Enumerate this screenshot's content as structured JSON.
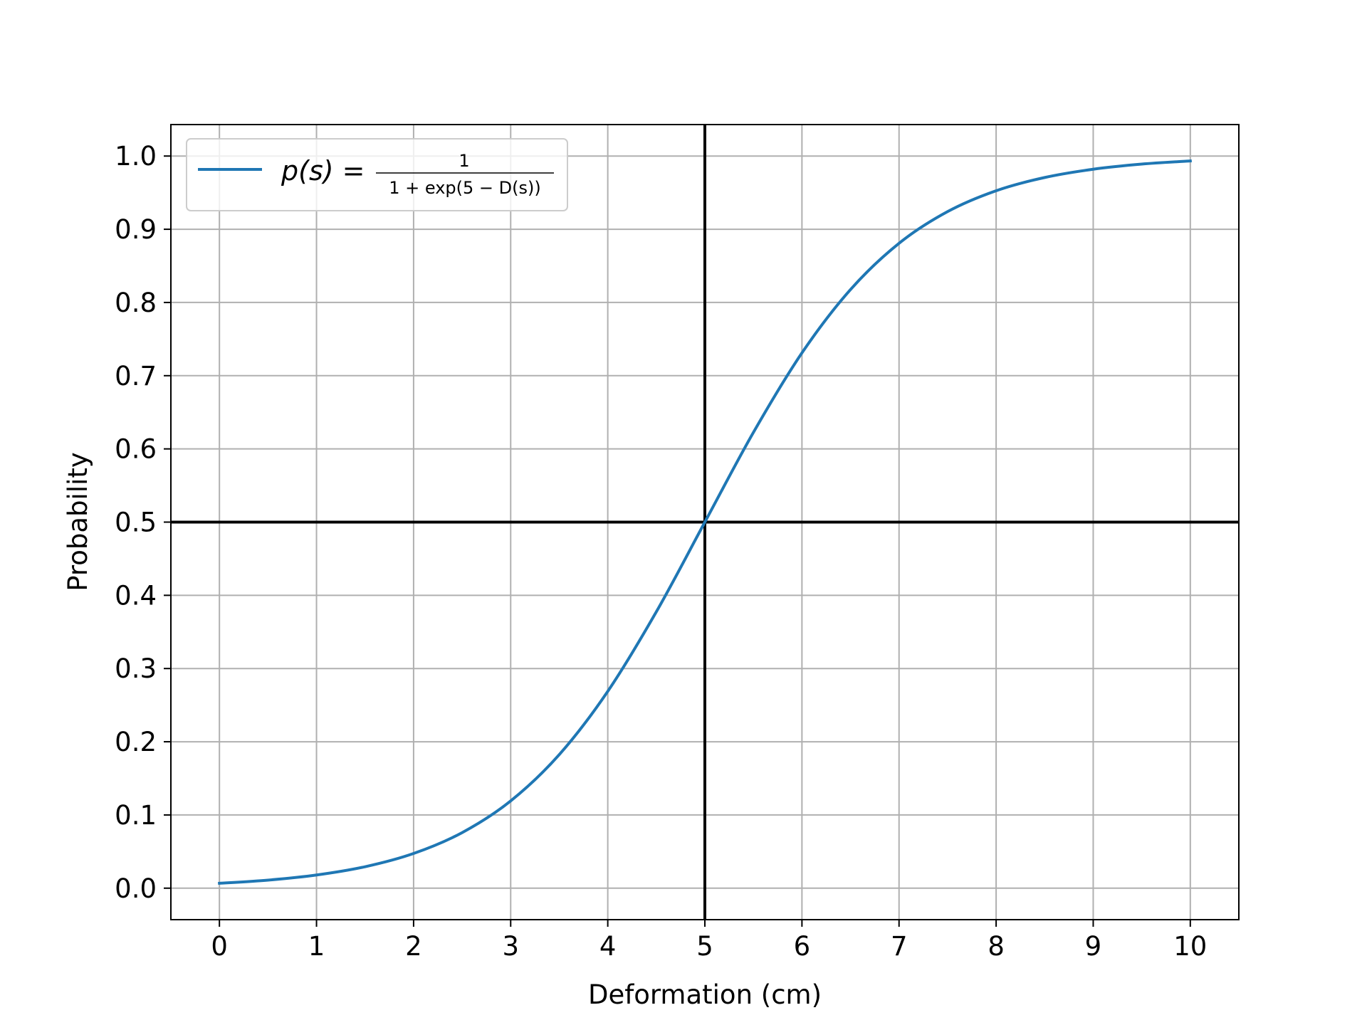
{
  "chart_data": {
    "type": "line",
    "title": "",
    "xlabel": "Deformation (cm)",
    "ylabel": "Probability",
    "xlim": [
      -0.5,
      10.5
    ],
    "ylim": [
      -0.043,
      1.043
    ],
    "xticks": [
      0,
      1,
      2,
      3,
      4,
      5,
      6,
      7,
      8,
      9,
      10
    ],
    "xtick_labels": [
      "0",
      "1",
      "2",
      "3",
      "4",
      "5",
      "6",
      "7",
      "8",
      "9",
      "10"
    ],
    "yticks": [
      0.0,
      0.1,
      0.2,
      0.3,
      0.4,
      0.5,
      0.6,
      0.7,
      0.8,
      0.9,
      1.0
    ],
    "ytick_labels": [
      "0.0",
      "0.1",
      "0.2",
      "0.3",
      "0.4",
      "0.5",
      "0.6",
      "0.7",
      "0.8",
      "0.9",
      "1.0"
    ],
    "grid": true,
    "legend_position": "upper-left",
    "series": [
      {
        "name": "p(s) = 1 / (1 + exp(5 − D(s)))",
        "color": "#1f77b4",
        "x": [
          0,
          0.5,
          1,
          1.5,
          2,
          2.5,
          3,
          3.5,
          4,
          4.5,
          5,
          5.5,
          6,
          6.5,
          7,
          7.5,
          8,
          8.5,
          9,
          9.5,
          10
        ],
        "y": [
          0.0067,
          0.011,
          0.018,
          0.0293,
          0.0474,
          0.0759,
          0.1192,
          0.1824,
          0.2689,
          0.3775,
          0.5,
          0.6225,
          0.7311,
          0.8176,
          0.8808,
          0.9241,
          0.9526,
          0.9707,
          0.982,
          0.989,
          0.9933
        ]
      }
    ],
    "reference_lines": [
      {
        "orientation": "vertical",
        "x": 5,
        "color": "#000000"
      },
      {
        "orientation": "horizontal",
        "y": 0.5,
        "color": "#000000"
      }
    ],
    "legend": {
      "lhs": "p(s) =",
      "numerator": "1",
      "denominator": "1 + exp(5 − D(s))"
    }
  }
}
